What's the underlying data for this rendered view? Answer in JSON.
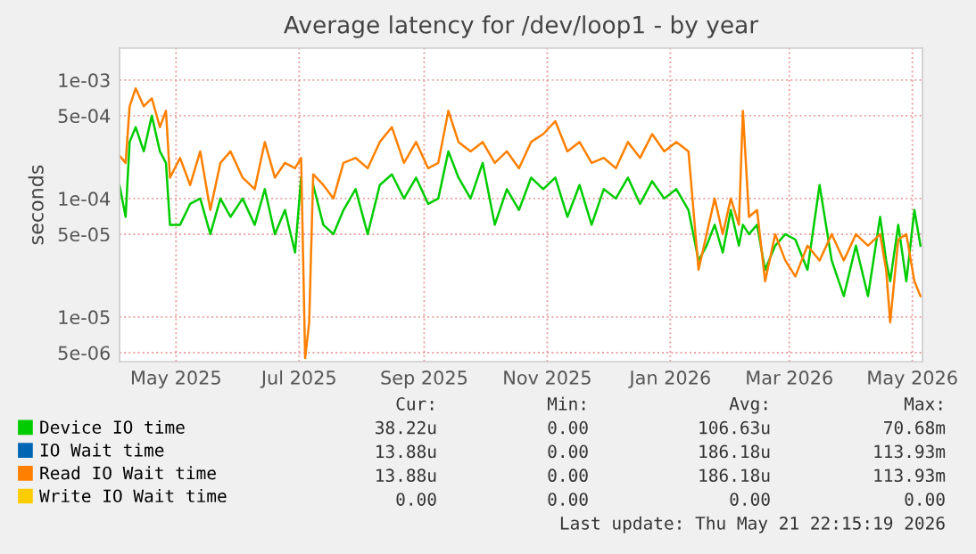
{
  "chart_data": {
    "type": "line",
    "title": "Average latency for /dev/loop1 - by year",
    "ylabel": "seconds",
    "log": "y",
    "grid": true,
    "legend": "bottom",
    "line_style": "solid",
    "marker": "none",
    "x": [
      "2025-04-03",
      "2025-04-06",
      "2025-04-08",
      "2025-04-11",
      "2025-04-15",
      "2025-04-19",
      "2025-04-23",
      "2025-04-26",
      "2025-04-28",
      "2025-05-03",
      "2025-05-08",
      "2025-05-13",
      "2025-05-18",
      "2025-05-23",
      "2025-05-28",
      "2025-06-03",
      "2025-06-09",
      "2025-06-14",
      "2025-06-19",
      "2025-06-24",
      "2025-06-29",
      "2025-07-02",
      "2025-07-04",
      "2025-07-06",
      "2025-07-08",
      "2025-07-13",
      "2025-07-18",
      "2025-07-23",
      "2025-07-29",
      "2025-08-04",
      "2025-08-10",
      "2025-08-16",
      "2025-08-22",
      "2025-08-28",
      "2025-09-03",
      "2025-09-08",
      "2025-09-13",
      "2025-09-18",
      "2025-09-24",
      "2025-09-30",
      "2025-10-06",
      "2025-10-12",
      "2025-10-18",
      "2025-10-24",
      "2025-10-30",
      "2025-11-05",
      "2025-11-11",
      "2025-11-17",
      "2025-11-23",
      "2025-11-29",
      "2025-12-05",
      "2025-12-11",
      "2025-12-17",
      "2025-12-23",
      "2025-12-29",
      "2026-01-04",
      "2026-01-10",
      "2026-01-15",
      "2026-01-19",
      "2026-01-23",
      "2026-01-27",
      "2026-01-31",
      "2026-02-04",
      "2026-02-06",
      "2026-02-09",
      "2026-02-13",
      "2026-02-17",
      "2026-02-22",
      "2026-02-27",
      "2026-03-04",
      "2026-03-10",
      "2026-03-16",
      "2026-03-22",
      "2026-03-28",
      "2026-04-03",
      "2026-04-09",
      "2026-04-15",
      "2026-04-18",
      "2026-04-20",
      "2026-04-24",
      "2026-04-28",
      "2026-05-02",
      "2026-05-05"
    ],
    "series": [
      {
        "name": "Device IO time",
        "color": "#00cc00",
        "values": [
          0.00013,
          7e-05,
          0.0003,
          0.0004,
          0.00025,
          0.0005,
          0.00025,
          0.0002,
          6e-05,
          6e-05,
          9e-05,
          0.0001,
          5e-05,
          0.0001,
          7e-05,
          0.0001,
          6e-05,
          0.00012,
          5e-05,
          8e-05,
          3.5e-05,
          0.00015,
          null,
          null,
          0.00013,
          6e-05,
          5e-05,
          8e-05,
          0.00012,
          5e-05,
          0.00013,
          0.00016,
          0.0001,
          0.00015,
          9e-05,
          0.0001,
          0.00025,
          0.00015,
          0.0001,
          0.0002,
          6e-05,
          0.00012,
          8e-05,
          0.00015,
          0.00012,
          0.00015,
          7e-05,
          0.00013,
          6e-05,
          0.00012,
          0.0001,
          0.00015,
          9e-05,
          0.00014,
          0.0001,
          0.00012,
          8e-05,
          3e-05,
          4e-05,
          6e-05,
          3.5e-05,
          8e-05,
          4e-05,
          6e-05,
          5e-05,
          6e-05,
          2.5e-05,
          4e-05,
          5e-05,
          4.5e-05,
          2.5e-05,
          0.00013,
          3e-05,
          1.5e-05,
          4e-05,
          1.5e-05,
          7e-05,
          3e-05,
          2e-05,
          6e-05,
          2e-05,
          8e-05,
          4e-05
        ]
      },
      {
        "name": "IO Wait time",
        "color": "#0066b3",
        "values": [
          null,
          null,
          null,
          null,
          null,
          null,
          null,
          null,
          null,
          null,
          null,
          null,
          null,
          null,
          null,
          null,
          null,
          null,
          null,
          null,
          null,
          null,
          null,
          null,
          null,
          null,
          null,
          null,
          null,
          null,
          null,
          null,
          null,
          null,
          null,
          null,
          null,
          null,
          null,
          null,
          null,
          null,
          null,
          null,
          null,
          null,
          null,
          null,
          null,
          null,
          null,
          null,
          null,
          null,
          null,
          null,
          null,
          null,
          null,
          null,
          null,
          null,
          null,
          null,
          null,
          null,
          null,
          null,
          null,
          null,
          null,
          null,
          null,
          null,
          null,
          null,
          null,
          null,
          null,
          null,
          null,
          null,
          null
        ]
      },
      {
        "name": "Read IO Wait time",
        "color": "#ff8000",
        "values": [
          0.00023,
          0.0002,
          0.0006,
          0.00085,
          0.0006,
          0.0007,
          0.0004,
          0.00055,
          0.00015,
          0.00022,
          0.00013,
          0.00025,
          8e-05,
          0.0002,
          0.00025,
          0.00015,
          0.00012,
          0.0003,
          0.00015,
          0.0002,
          0.00018,
          0.00022,
          4.5e-06,
          9e-06,
          0.00016,
          0.00013,
          0.0001,
          0.0002,
          0.00022,
          0.00018,
          0.0003,
          0.0004,
          0.0002,
          0.0003,
          0.00018,
          0.0002,
          0.00055,
          0.0003,
          0.00025,
          0.0003,
          0.0002,
          0.00025,
          0.00018,
          0.0003,
          0.00035,
          0.00045,
          0.00025,
          0.0003,
          0.0002,
          0.00022,
          0.00018,
          0.0003,
          0.00022,
          0.00035,
          0.00025,
          0.0003,
          0.00025,
          2.5e-05,
          5e-05,
          0.0001,
          5e-05,
          0.0001,
          6e-05,
          0.00055,
          7e-05,
          8e-05,
          2e-05,
          5e-05,
          3e-05,
          2.2e-05,
          4e-05,
          3e-05,
          5e-05,
          3e-05,
          5e-05,
          4e-05,
          5e-05,
          2.5e-05,
          9e-06,
          4.5e-05,
          5e-05,
          2e-05,
          1.5e-05
        ]
      },
      {
        "name": "Write IO Wait time",
        "color": "#ffcc00",
        "values": [
          null,
          null,
          null,
          null,
          null,
          null,
          null,
          null,
          null,
          null,
          null,
          null,
          null,
          null,
          null,
          null,
          null,
          null,
          null,
          null,
          null,
          null,
          null,
          null,
          null,
          null,
          null,
          null,
          null,
          null,
          null,
          null,
          null,
          null,
          null,
          null,
          null,
          null,
          null,
          null,
          null,
          null,
          null,
          null,
          null,
          null,
          null,
          null,
          null,
          null,
          null,
          null,
          null,
          null,
          null,
          null,
          null,
          null,
          null,
          null,
          null,
          null,
          null,
          null,
          null,
          null,
          null,
          null,
          null,
          null,
          null,
          null,
          null,
          null,
          null,
          null,
          null,
          null,
          null,
          null,
          null,
          null,
          null
        ]
      }
    ],
    "xlim": [
      "2025-04-03",
      "2026-05-06"
    ],
    "xticks": [
      {
        "value": "2025-05-01",
        "label": "May 2025"
      },
      {
        "value": "2025-07-01",
        "label": "Jul 2025"
      },
      {
        "value": "2025-09-01",
        "label": "Sep 2025"
      },
      {
        "value": "2025-11-01",
        "label": "Nov 2025"
      },
      {
        "value": "2026-01-01",
        "label": "Jan 2026"
      },
      {
        "value": "2026-03-01",
        "label": "Mar 2026"
      },
      {
        "value": "2026-05-01",
        "label": "May 2026"
      }
    ],
    "ylim": [
      4.2e-06,
      0.00186
    ],
    "yticks": [
      {
        "value": 0.001,
        "label": "1e-03"
      },
      {
        "value": 0.0005,
        "label": "5e-04"
      },
      {
        "value": 0.0001,
        "label": "1e-04"
      },
      {
        "value": 5e-05,
        "label": "5e-05"
      },
      {
        "value": 1e-05,
        "label": "1e-05"
      },
      {
        "value": 5e-06,
        "label": "5e-06"
      }
    ],
    "annotations": [
      "Cur:",
      "Min:",
      "Avg:",
      "Max:",
      "38.22u",
      "0.00",
      "106.63u",
      "70.68m",
      "13.88u",
      "0.00",
      "186.18u",
      "113.93m",
      "13.88u",
      "0.00",
      "186.18u",
      "113.93m",
      "0.00",
      "0.00",
      "0.00",
      "0.00",
      "Last update: Thu May 21 22:15:19 2026"
    ]
  }
}
